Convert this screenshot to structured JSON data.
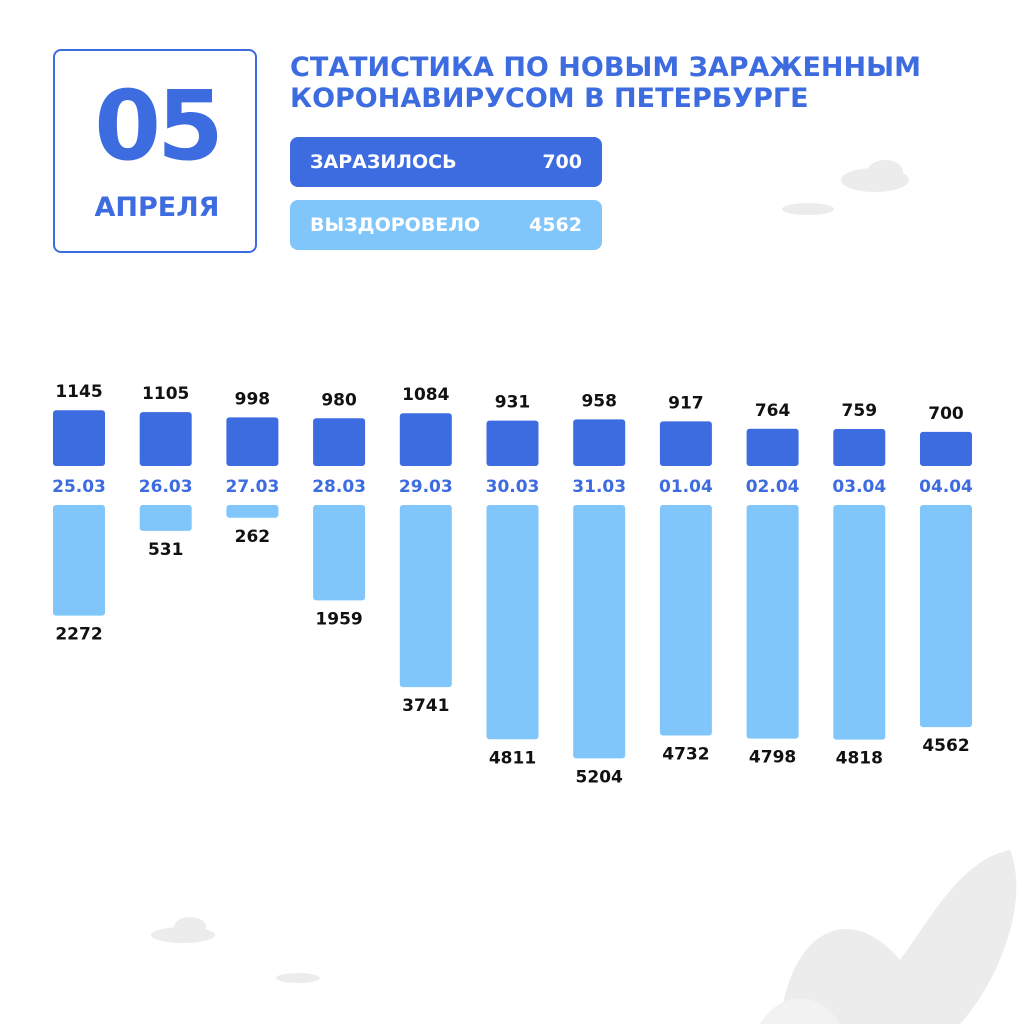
{
  "header": {
    "day": "05",
    "month": "АПРЕЛЯ"
  },
  "summary": [
    {
      "label": "ЗАРАЗИЛОСЬ",
      "value": 700,
      "color": "#3d6be0"
    },
    {
      "label": "ВЫЗДОРОВЕЛО",
      "value": 4562,
      "color": "#80c6fb"
    }
  ],
  "chart_data": {
    "type": "bar",
    "title": "СТАТИСТИКА ПО НОВЫМ ЗАРАЖЕННЫМ КОРОНАВИРУСОМ В ПЕТЕРБУРГЕ",
    "categories": [
      "25.03",
      "26.03",
      "27.03",
      "28.03",
      "29.03",
      "30.03",
      "31.03",
      "01.04",
      "02.04",
      "03.04",
      "04.04"
    ],
    "series": [
      {
        "color": "#3d6be0",
        "values": [
          1145,
          1105,
          998,
          980,
          1084,
          931,
          958,
          917,
          764,
          759,
          700
        ]
      },
      {
        "color": "#80c6fb",
        "values": [
          2272,
          531,
          262,
          1959,
          3741,
          4811,
          5204,
          4732,
          4798,
          4818,
          4562
        ]
      }
    ]
  }
}
